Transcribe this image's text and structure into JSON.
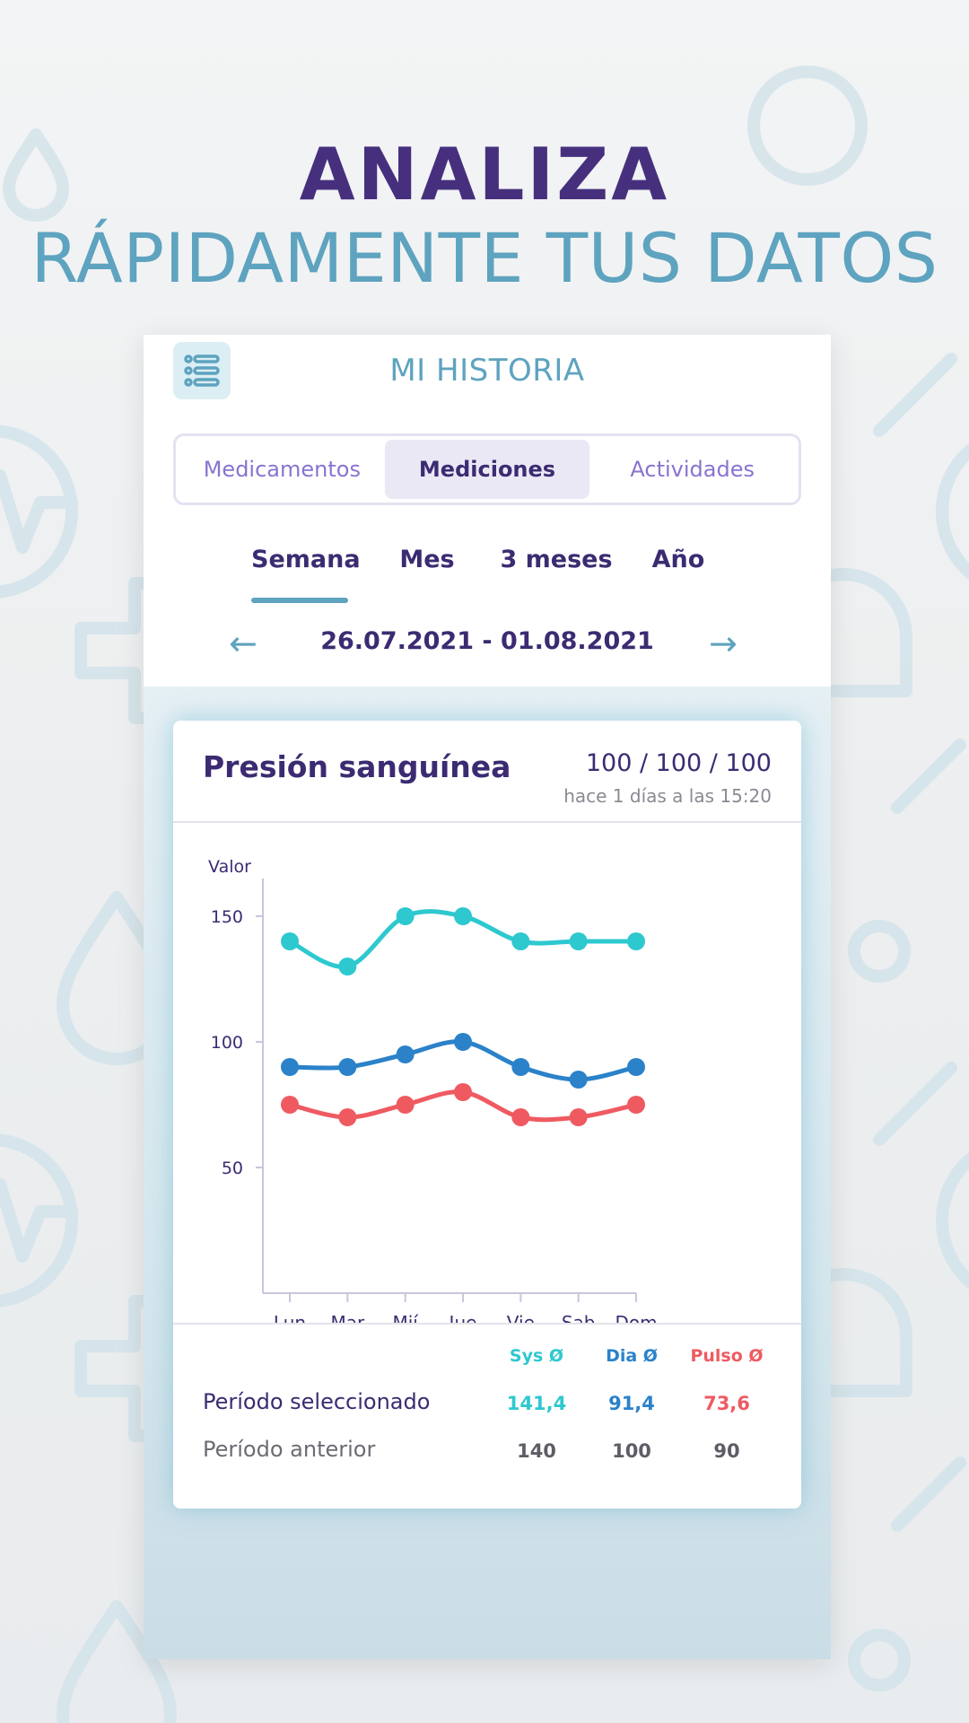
{
  "headline": {
    "line1": "ANALIZA",
    "line2": "RÁPIDAMENTE TUS DATOS"
  },
  "screen": {
    "title": "MI HISTORIA",
    "menu_icon": "list-icon",
    "tabs": [
      {
        "label": "Medicamentos",
        "active": false
      },
      {
        "label": "Mediciones",
        "active": true
      },
      {
        "label": "Actividades",
        "active": false
      }
    ],
    "periods": [
      {
        "label": "Semana",
        "active": true
      },
      {
        "label": "Mes",
        "active": false
      },
      {
        "label": "3 meses",
        "active": false
      },
      {
        "label": "Año",
        "active": false
      }
    ],
    "prev_arrow": "←",
    "next_arrow": "→",
    "date_range": "26.07.2021 - 01.08.2021"
  },
  "card": {
    "title": "Presión sanguínea",
    "latest_value": "100 / 100 / 100",
    "latest_time": "hace 1 días a las 15:20"
  },
  "chart_data": {
    "type": "line",
    "ylabel": "Valor",
    "xlabel": "",
    "categories": [
      "Lun",
      "Mar",
      "Mií",
      "Jue",
      "Vie",
      "Sab",
      "Dom"
    ],
    "y_ticks": [
      50,
      100,
      150
    ],
    "ylim": [
      0,
      165
    ],
    "grid": false,
    "series": [
      {
        "values": [
          140,
          130,
          150,
          150,
          140,
          140,
          140
        ],
        "color": "#2ec8cf"
      },
      {
        "values": [
          90,
          90,
          95,
          100,
          90,
          85,
          90
        ],
        "color": "#2b82c9"
      },
      {
        "values": [
          75,
          70,
          75,
          80,
          70,
          70,
          75
        ],
        "color": "#ef5a61"
      }
    ]
  },
  "summary": {
    "headers": [
      {
        "label": "Sys Ø",
        "color": "#2ec8cf"
      },
      {
        "label": "Dia Ø",
        "color": "#2b82c9"
      },
      {
        "label": "Pulso Ø",
        "color": "#ef5a61"
      }
    ],
    "rows": [
      {
        "label": "Período seleccionado",
        "values": [
          "141,4",
          "91,4",
          "73,6"
        ],
        "colored": true
      },
      {
        "label": "Período anterior",
        "values": [
          "140",
          "100",
          "90"
        ],
        "colored": false
      }
    ]
  }
}
